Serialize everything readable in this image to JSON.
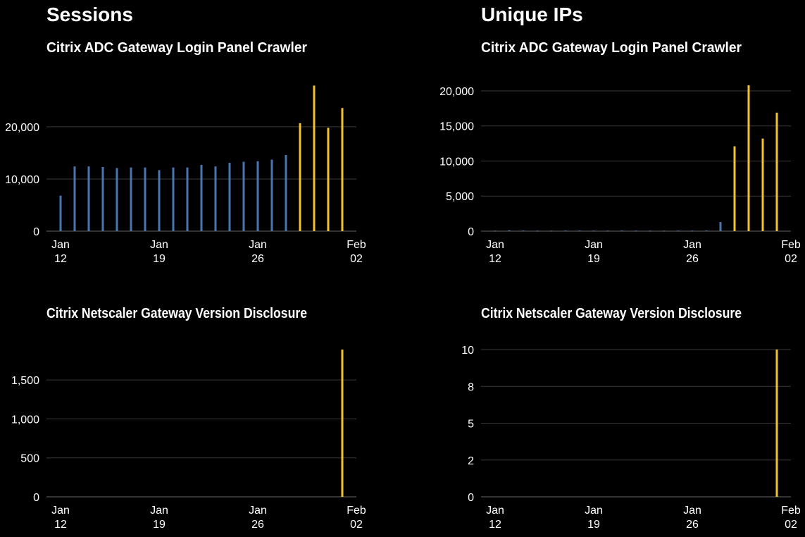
{
  "sections": [
    "Sessions",
    "Unique IPs"
  ],
  "colors": {
    "historical": "#4a76b0",
    "recent": "#f2c230",
    "grid": "#3a3a3a",
    "background": "#000000"
  },
  "chart_data": [
    {
      "type": "bar",
      "section": "Sessions",
      "title": "Citrix ADC Gateway Login Panel Crawler",
      "x": [
        "Jan 12",
        "Jan 13",
        "Jan 14",
        "Jan 15",
        "Jan 16",
        "Jan 17",
        "Jan 18",
        "Jan 19",
        "Jan 20",
        "Jan 21",
        "Jan 22",
        "Jan 23",
        "Jan 24",
        "Jan 25",
        "Jan 26",
        "Jan 27",
        "Jan 28",
        "Jan 29",
        "Jan 30",
        "Jan 31",
        "Feb 01"
      ],
      "values": [
        6800,
        12400,
        12400,
        12300,
        12100,
        12200,
        12200,
        11700,
        12200,
        12200,
        12700,
        12400,
        13100,
        13300,
        13400,
        13700,
        14600,
        20700,
        27900,
        19800,
        23600
      ],
      "highlight_from_index": 17,
      "yticks": [
        0,
        10000,
        20000
      ],
      "ytick_labels": [
        "0",
        "10,000",
        "20,000"
      ],
      "ylim": [
        0,
        28500
      ],
      "xtick_labels": [
        [
          "Jan",
          "12"
        ],
        [
          "Jan",
          "19"
        ],
        [
          "Jan",
          "26"
        ],
        [
          "Feb",
          "02"
        ]
      ],
      "grid": true
    },
    {
      "type": "bar",
      "section": "Unique IPs",
      "title": "Citrix ADC Gateway Login Panel Crawler",
      "x": [
        "Jan 12",
        "Jan 13",
        "Jan 14",
        "Jan 15",
        "Jan 16",
        "Jan 17",
        "Jan 18",
        "Jan 19",
        "Jan 20",
        "Jan 21",
        "Jan 22",
        "Jan 23",
        "Jan 24",
        "Jan 25",
        "Jan 26",
        "Jan 27",
        "Jan 28",
        "Jan 29",
        "Jan 30",
        "Jan 31",
        "Feb 01"
      ],
      "values": [
        60,
        120,
        80,
        60,
        60,
        80,
        80,
        70,
        70,
        80,
        70,
        60,
        60,
        70,
        70,
        90,
        1300,
        12100,
        20800,
        13200,
        16900
      ],
      "highlight_from_index": 17,
      "yticks": [
        0,
        5000,
        10000,
        15000,
        20000
      ],
      "ytick_labels": [
        "0",
        "5,000",
        "10,000",
        "15,000",
        "20,000"
      ],
      "ylim": [
        0,
        21000
      ],
      "xtick_labels": [
        [
          "Jan",
          "12"
        ],
        [
          "Jan",
          "19"
        ],
        [
          "Jan",
          "26"
        ],
        [
          "Feb",
          "02"
        ]
      ],
      "grid": true
    },
    {
      "type": "bar",
      "section": "Sessions",
      "title": "Citrix Netscaler Gateway Version Disclosure",
      "x": [
        "Jan 12",
        "Jan 13",
        "Jan 14",
        "Jan 15",
        "Jan 16",
        "Jan 17",
        "Jan 18",
        "Jan 19",
        "Jan 20",
        "Jan 21",
        "Jan 22",
        "Jan 23",
        "Jan 24",
        "Jan 25",
        "Jan 26",
        "Jan 27",
        "Jan 28",
        "Jan 29",
        "Jan 30",
        "Jan 31",
        "Feb 01"
      ],
      "values": [
        0,
        0,
        0,
        0,
        0,
        0,
        0,
        0,
        0,
        0,
        0,
        0,
        0,
        0,
        0,
        0,
        0,
        0,
        0,
        0,
        1890
      ],
      "highlight_from_index": 17,
      "yticks": [
        0,
        500,
        1000,
        1500
      ],
      "ytick_labels": [
        "0",
        "500",
        "1,000",
        "1,500"
      ],
      "ylim": [
        0,
        1890
      ],
      "xtick_labels": [
        [
          "Jan",
          "12"
        ],
        [
          "Jan",
          "19"
        ],
        [
          "Jan",
          "26"
        ],
        [
          "Feb",
          "02"
        ]
      ],
      "grid": true
    },
    {
      "type": "bar",
      "section": "Unique IPs",
      "title": "Citrix Netscaler Gateway Version Disclosure",
      "x": [
        "Jan 12",
        "Jan 13",
        "Jan 14",
        "Jan 15",
        "Jan 16",
        "Jan 17",
        "Jan 18",
        "Jan 19",
        "Jan 20",
        "Jan 21",
        "Jan 22",
        "Jan 23",
        "Jan 24",
        "Jan 25",
        "Jan 26",
        "Jan 27",
        "Jan 28",
        "Jan 29",
        "Jan 30",
        "Jan 31",
        "Feb 01"
      ],
      "values": [
        0,
        0,
        0,
        0,
        0,
        0,
        0,
        0,
        0,
        0,
        0,
        0,
        0,
        0,
        0,
        0,
        0,
        0,
        0,
        0,
        10
      ],
      "highlight_from_index": 17,
      "yticks": [
        0,
        2.5,
        5,
        7.5,
        10
      ],
      "ytick_labels": [
        "0",
        "2",
        "5",
        "8",
        "10"
      ],
      "ylim": [
        0,
        10
      ],
      "xtick_labels": [
        [
          "Jan",
          "12"
        ],
        [
          "Jan",
          "19"
        ],
        [
          "Jan",
          "26"
        ],
        [
          "Feb",
          "02"
        ]
      ],
      "grid": true
    }
  ]
}
